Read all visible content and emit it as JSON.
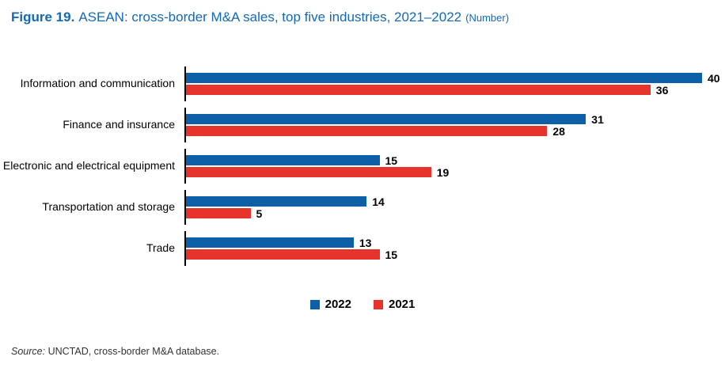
{
  "title": {
    "prefix": "Figure 19.",
    "main": "ASEAN: cross-border M&A sales, top five industries, 2021–2022",
    "unit": "(Number)"
  },
  "chart_data": {
    "type": "bar",
    "orientation": "horizontal",
    "categories": [
      "Information and communication",
      "Finance and insurance",
      "Electronic and electrical equipment",
      "Transportation and storage",
      "Trade"
    ],
    "series": [
      {
        "name": "2022",
        "color": "#0D60A8",
        "values": [
          40,
          31,
          15,
          14,
          13
        ]
      },
      {
        "name": "2021",
        "color": "#E6332B",
        "values": [
          36,
          28,
          19,
          5,
          15
        ]
      }
    ],
    "xlim": [
      0,
      40
    ],
    "value_labels": true,
    "grid": false,
    "legend_position": "bottom"
  },
  "legend": [
    {
      "label": "2022",
      "color": "#0D60A8"
    },
    {
      "label": "2021",
      "color": "#E6332B"
    }
  ],
  "source": {
    "prefix": "Source:",
    "text": "UNCTAD, cross-border M&A database."
  },
  "colors": {
    "title_blue": "#1568B4",
    "bar_blue": "#0D60A8",
    "bar_red": "#E6332B",
    "axis_black": "#000000"
  }
}
